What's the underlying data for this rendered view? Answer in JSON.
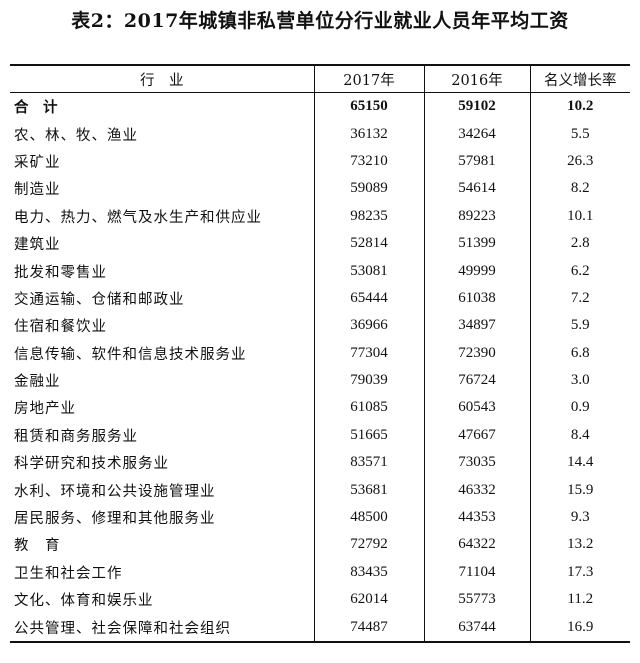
{
  "title": "表2：2017年城镇非私营单位分行业就业人员年平均工资",
  "table": {
    "headers": [
      "行　业",
      "2017年",
      "2016年",
      "名义增长率"
    ],
    "total": {
      "industry": "合　计",
      "y2017": "65150",
      "y2016": "59102",
      "rate": "10.2"
    },
    "rows": [
      {
        "industry": "农、林、牧、渔业",
        "y2017": "36132",
        "y2016": "34264",
        "rate": "5.5"
      },
      {
        "industry": "采矿业",
        "y2017": "73210",
        "y2016": "57981",
        "rate": "26.3"
      },
      {
        "industry": "制造业",
        "y2017": "59089",
        "y2016": "54614",
        "rate": "8.2"
      },
      {
        "industry": "电力、热力、燃气及水生产和供应业",
        "y2017": "98235",
        "y2016": "89223",
        "rate": "10.1"
      },
      {
        "industry": "建筑业",
        "y2017": "52814",
        "y2016": "51399",
        "rate": "2.8"
      },
      {
        "industry": "批发和零售业",
        "y2017": "53081",
        "y2016": "49999",
        "rate": "6.2"
      },
      {
        "industry": "交通运输、仓储和邮政业",
        "y2017": "65444",
        "y2016": "61038",
        "rate": "7.2"
      },
      {
        "industry": "住宿和餐饮业",
        "y2017": "36966",
        "y2016": "34897",
        "rate": "5.9"
      },
      {
        "industry": "信息传输、软件和信息技术服务业",
        "y2017": "77304",
        "y2016": "72390",
        "rate": "6.8"
      },
      {
        "industry": "金融业",
        "y2017": "79039",
        "y2016": "76724",
        "rate": "3.0"
      },
      {
        "industry": "房地产业",
        "y2017": "61085",
        "y2016": "60543",
        "rate": "0.9"
      },
      {
        "industry": "租赁和商务服务业",
        "y2017": "51665",
        "y2016": "47667",
        "rate": "8.4"
      },
      {
        "industry": "科学研究和技术服务业",
        "y2017": "83571",
        "y2016": "73035",
        "rate": "14.4"
      },
      {
        "industry": "水利、环境和公共设施管理业",
        "y2017": "53681",
        "y2016": "46332",
        "rate": "15.9"
      },
      {
        "industry": "居民服务、修理和其他服务业",
        "y2017": "48500",
        "y2016": "44353",
        "rate": "9.3"
      },
      {
        "industry": "教　育",
        "y2017": "72792",
        "y2016": "64322",
        "rate": "13.2"
      },
      {
        "industry": "卫生和社会工作",
        "y2017": "83435",
        "y2016": "71104",
        "rate": "17.3"
      },
      {
        "industry": "文化、体育和娱乐业",
        "y2017": "62014",
        "y2016": "55773",
        "rate": "11.2"
      },
      {
        "industry": "公共管理、社会保障和社会组织",
        "y2017": "74487",
        "y2016": "63744",
        "rate": "16.9"
      }
    ]
  }
}
